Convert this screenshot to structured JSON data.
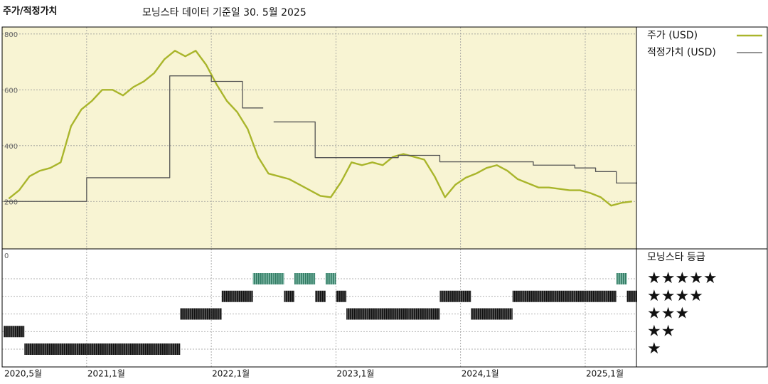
{
  "chart_data": {
    "type": "line",
    "title": "주가/적정가치",
    "subtitle": "모닝스타 데이터 기준일 30. 5월 2025",
    "x": [
      "2020-05",
      "2020-06",
      "2020-07",
      "2020-08",
      "2020-09",
      "2020-10",
      "2020-11",
      "2020-12",
      "2021-01",
      "2021-02",
      "2021-03",
      "2021-04",
      "2021-05",
      "2021-06",
      "2021-07",
      "2021-08",
      "2021-09",
      "2021-10",
      "2021-11",
      "2021-12",
      "2022-01",
      "2022-02",
      "2022-03",
      "2022-04",
      "2022-05",
      "2022-06",
      "2022-07",
      "2022-08",
      "2022-09",
      "2022-10",
      "2022-11",
      "2022-12",
      "2023-01",
      "2023-02",
      "2023-03",
      "2023-04",
      "2023-05",
      "2023-06",
      "2023-07",
      "2023-08",
      "2023-09",
      "2023-10",
      "2023-11",
      "2023-12",
      "2024-01",
      "2024-02",
      "2024-03",
      "2024-04",
      "2024-05",
      "2024-06",
      "2024-07",
      "2024-08",
      "2024-09",
      "2024-10",
      "2024-11",
      "2024-12",
      "2025-01",
      "2025-02",
      "2025-03",
      "2025-04",
      "2025-05"
    ],
    "series": [
      {
        "name": "주가 (USD)",
        "color": "#a9b52b",
        "step": false,
        "values": [
          210,
          240,
          290,
          310,
          320,
          340,
          470,
          530,
          560,
          600,
          600,
          580,
          610,
          630,
          660,
          710,
          740,
          720,
          740,
          690,
          620,
          560,
          520,
          460,
          360,
          300,
          290,
          280,
          260,
          240,
          220,
          215,
          270,
          340,
          330,
          340,
          330,
          360,
          370,
          360,
          350,
          290,
          215,
          260,
          285,
          300,
          320,
          330,
          310,
          280,
          265,
          250,
          250,
          245,
          240,
          240,
          230,
          215,
          185,
          195,
          200
        ]
      },
      {
        "name": "적정가치 (USD)",
        "color": "#555555",
        "step": true,
        "values": [
          200,
          200,
          200,
          200,
          200,
          200,
          200,
          200,
          285,
          285,
          285,
          285,
          285,
          285,
          285,
          285,
          650,
          650,
          650,
          650,
          630,
          630,
          630,
          535,
          535,
          null,
          485,
          485,
          485,
          485,
          357,
          357,
          357,
          357,
          357,
          357,
          357,
          357,
          365,
          365,
          365,
          365,
          342,
          342,
          342,
          342,
          342,
          342,
          342,
          342,
          342,
          330,
          330,
          330,
          330,
          320,
          320,
          307,
          307,
          266,
          266
        ]
      }
    ],
    "ylim": [
      30,
      825
    ],
    "yticks": [
      200,
      400,
      600,
      800
    ],
    "xticks": [
      {
        "value": "2020-05",
        "label": "2020,5월"
      },
      {
        "value": "2021-01",
        "label": "2021,1월"
      },
      {
        "value": "2022-01",
        "label": "2022,1월"
      },
      {
        "value": "2023-01",
        "label": "2023,1월"
      },
      {
        "value": "2024-01",
        "label": "2024,1월"
      },
      {
        "value": "2025-01",
        "label": "2025,1월"
      }
    ],
    "grid": true,
    "background": "#f8f4d3",
    "ratings": {
      "title": "모닝스타 등급",
      "zero_label": "0",
      "levels": [
        5,
        4,
        3,
        2,
        1
      ],
      "level_labels": [
        "★★★★★",
        "★★★★",
        "★★★",
        "★★",
        "★"
      ],
      "top_color": "#3f8a72",
      "color": "#333333",
      "values": [
        2,
        2,
        1,
        1,
        1,
        1,
        1,
        1,
        1,
        1,
        1,
        1,
        1,
        1,
        1,
        1,
        1,
        3,
        3,
        3,
        3,
        4,
        4,
        4,
        5,
        5,
        5,
        4,
        5,
        5,
        4,
        5,
        4,
        3,
        3,
        3,
        3,
        3,
        3,
        3,
        3,
        3,
        4,
        4,
        4,
        3,
        3,
        3,
        3,
        4,
        4,
        4,
        4,
        4,
        4,
        4,
        4,
        4,
        4,
        5,
        4
      ]
    }
  }
}
